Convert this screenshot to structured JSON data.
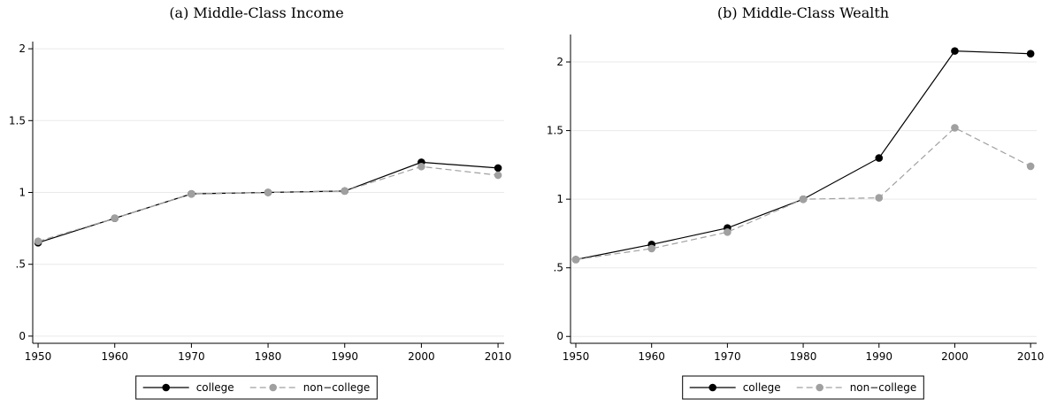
{
  "chart_data": [
    {
      "type": "line",
      "title": "(a) Middle-Class Income",
      "x": [
        1950,
        1960,
        1970,
        1980,
        1990,
        2000,
        2010
      ],
      "series": [
        {
          "name": "college",
          "color": "#000000",
          "linestyle": "solid",
          "values": [
            0.65,
            0.82,
            0.99,
            1.0,
            1.01,
            1.21,
            1.17
          ]
        },
        {
          "name": "non−college",
          "color": "#a0a0a0",
          "linestyle": "dashed",
          "values": [
            0.66,
            0.82,
            0.99,
            1.0,
            1.01,
            1.18,
            1.12
          ]
        }
      ],
      "xlim": [
        1949.3,
        2010.8
      ],
      "xticks": [
        1950,
        1960,
        1970,
        1980,
        1990,
        2000,
        2010
      ],
      "ylim": [
        -0.05,
        2.05
      ],
      "yticks": [
        0,
        {
          "value": 0.5,
          "label": ".5"
        },
        1,
        1.5,
        2
      ],
      "grid": true,
      "legend": "bottom"
    },
    {
      "type": "line",
      "title": "(b) Middle-Class Wealth",
      "x": [
        1950,
        1960,
        1970,
        1980,
        1990,
        2000,
        2010
      ],
      "series": [
        {
          "name": "college",
          "color": "#000000",
          "linestyle": "solid",
          "values": [
            0.56,
            0.67,
            0.79,
            1.0,
            1.3,
            2.08,
            2.06
          ]
        },
        {
          "name": "non−college",
          "color": "#a0a0a0",
          "linestyle": "dashed",
          "values": [
            0.56,
            0.64,
            0.76,
            1.0,
            1.01,
            1.52,
            1.24
          ]
        }
      ],
      "xlim": [
        1949.3,
        2010.8
      ],
      "xticks": [
        1950,
        1960,
        1970,
        1980,
        1990,
        2000,
        2010
      ],
      "ylim": [
        -0.05,
        2.2
      ],
      "yticks": [
        0,
        {
          "value": 0.5,
          "label": ".5"
        },
        1,
        1.5,
        2
      ],
      "grid": true,
      "legend": "bottom"
    }
  ]
}
